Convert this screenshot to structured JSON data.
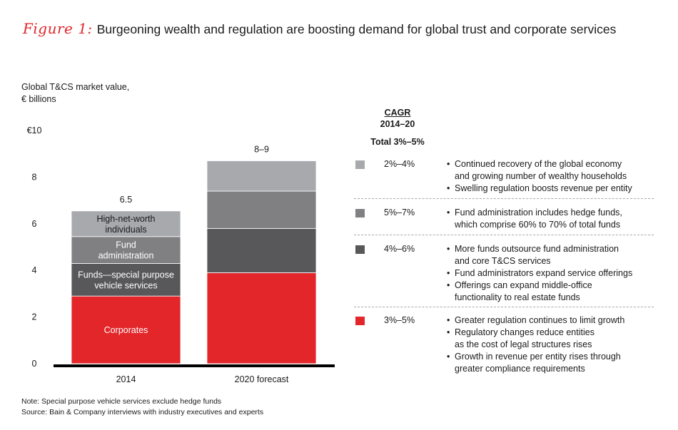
{
  "title": {
    "figure_label": "Figure 1:",
    "text": "Burgeoning wealth and regulation are boosting demand for global trust and corporate services"
  },
  "chart_data": {
    "type": "bar",
    "stacked": true,
    "ylabel": "Global T&CS market value, € billions",
    "ylabel_lines": [
      "Global T&CS market value,",
      "€ billions"
    ],
    "ylim": [
      0,
      10
    ],
    "yticks": [
      0,
      2,
      4,
      6,
      8,
      10
    ],
    "ytick_labels": [
      "0",
      "2",
      "4",
      "6",
      "8",
      "€10"
    ],
    "grid": false,
    "categories": [
      "2014",
      "2020 forecast"
    ],
    "totals_labels": [
      "6.5",
      "8–9"
    ],
    "series": [
      {
        "name": "Corporates",
        "label_lines": [
          "Corporates"
        ],
        "color": "#e3262a",
        "label_color": "#ffffff",
        "values": [
          2.9,
          3.9
        ]
      },
      {
        "name": "Funds—special purpose vehicle services",
        "label_lines": [
          "Funds—special purpose",
          "vehicle services"
        ],
        "color": "#58585a",
        "label_color": "#ffffff",
        "values": [
          1.4,
          1.9
        ]
      },
      {
        "name": "Fund administration",
        "label_lines": [
          "Fund",
          "administration"
        ],
        "color": "#808083",
        "label_color": "#ffffff",
        "values": [
          1.15,
          1.6
        ]
      },
      {
        "name": "High-net-worth individuals",
        "label_lines": [
          "High-net-worth",
          "individuals"
        ],
        "color": "#a8a9ad",
        "label_color": "#1a1a1a",
        "values": [
          1.1,
          1.3
        ]
      }
    ]
  },
  "cagr": {
    "heading": "CAGR",
    "period": "2014–20",
    "total": "Total 3%–5%",
    "rows": [
      {
        "segment": "High-net-worth individuals",
        "color": "#a8a9ad",
        "rate": "2%–4%",
        "bullets": [
          [
            "Continued recovery of the global economy",
            "and growing number of wealthy households"
          ],
          [
            "Swelling regulation boosts revenue per entity"
          ]
        ]
      },
      {
        "segment": "Fund administration",
        "color": "#808083",
        "rate": "5%–7%",
        "bullets": [
          [
            "Fund administration includes hedge funds,",
            "which comprise 60% to 70% of total funds"
          ]
        ]
      },
      {
        "segment": "Funds—special purpose vehicle services",
        "color": "#58585a",
        "rate": "4%–6%",
        "bullets": [
          [
            "More funds outsource fund administration",
            "and core T&CS services"
          ],
          [
            "Fund administrators expand service offerings"
          ],
          [
            "Offerings can expand middle-office",
            "functionality to real estate funds"
          ]
        ]
      },
      {
        "segment": "Corporates",
        "color": "#e3262a",
        "rate": "3%–5%",
        "bullets": [
          [
            "Greater regulation continues to limit growth"
          ],
          [
            "Regulatory changes reduce entities",
            "as the cost of legal structures rises"
          ],
          [
            "Growth in revenue per entity rises through",
            "greater compliance requirements"
          ]
        ]
      }
    ]
  },
  "notes": {
    "note": "Note: Special purpose vehicle services exclude hedge funds",
    "source": "Source: Bain & Company interviews with industry executives and experts"
  }
}
